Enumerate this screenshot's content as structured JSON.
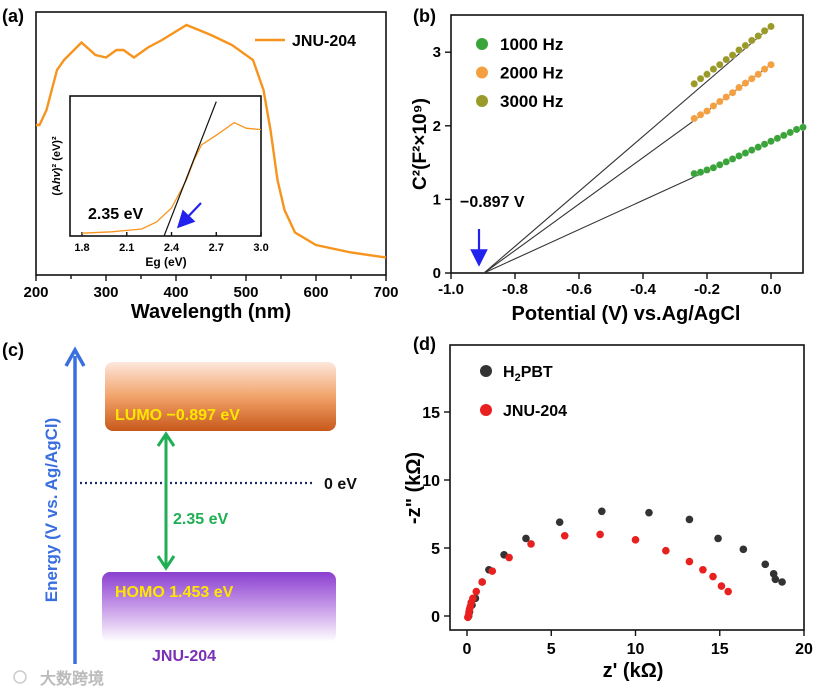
{
  "colors": {
    "uv_curve": "#f7941d",
    "green": "#3aa33a",
    "orange": "#f5a040",
    "olive": "#9a9a2a",
    "black_marker": "#333333",
    "red_marker": "#e8201f",
    "arrow_blue": "#2222ee",
    "energy_axis": "#3a6fe0",
    "gap_arrow": "#1fae54",
    "label_yellow": "#ffe600",
    "jnu_purple": "#7a2fb5"
  },
  "watermark": "大数跨境",
  "chart_data": [
    {
      "panel": "(a)",
      "type": "line",
      "xlabel": "Wavelength (nm)",
      "ylabel": "",
      "xlim": [
        200,
        700
      ],
      "xticks": [
        "200",
        "300",
        "400",
        "500",
        "600",
        "700"
      ],
      "ylim": [
        0,
        1.05
      ],
      "legend": {
        "position": "top-right",
        "entries": [
          "JNU-204"
        ]
      },
      "series": [
        {
          "name": "JNU-204",
          "x": [
            200,
            205,
            215,
            230,
            240,
            265,
            285,
            300,
            315,
            325,
            340,
            360,
            380,
            415,
            450,
            480,
            510,
            525,
            535,
            545,
            555,
            570,
            600,
            650,
            700
          ],
          "y": [
            0.6,
            0.6,
            0.66,
            0.82,
            0.86,
            0.93,
            0.88,
            0.87,
            0.9,
            0.9,
            0.87,
            0.91,
            0.94,
            1.0,
            0.96,
            0.92,
            0.86,
            0.74,
            0.58,
            0.38,
            0.26,
            0.17,
            0.12,
            0.09,
            0.07
          ]
        }
      ],
      "inset": {
        "type": "line",
        "xlabel": "Eg (eV)",
        "ylabel_prefix": "(A",
        "ylabel_italic": "hv",
        "ylabel_suffix": ")² (eV)²",
        "xlim": [
          1.72,
          3.0
        ],
        "xticks": [
          "1.8",
          "2.1",
          "2.4",
          "2.7",
          "3.0"
        ],
        "annotation": "2.35 eV",
        "series": {
          "x": [
            1.8,
            2.0,
            2.2,
            2.3,
            2.4,
            2.5,
            2.55,
            2.6,
            2.7,
            2.82,
            2.9,
            3.0
          ],
          "y": [
            0.02,
            0.03,
            0.05,
            0.1,
            0.2,
            0.4,
            0.54,
            0.65,
            0.72,
            0.81,
            0.77,
            0.76
          ]
        },
        "tangent": {
          "x": [
            2.35,
            2.7
          ],
          "y": [
            0.0,
            0.96
          ]
        }
      }
    },
    {
      "panel": "(b)",
      "type": "scatter",
      "xlabel": "Potential (V) vs.Ag/AgCl",
      "ylabel": "C²(F²×10⁹)",
      "xlim": [
        -1.0,
        0.1
      ],
      "ylim": [
        0,
        3.5
      ],
      "xticks": [
        "-1.0",
        "-0.8",
        "-0.6",
        "-0.4",
        "-0.2",
        "0.0"
      ],
      "yticks": [
        "0",
        "1",
        "2",
        "3"
      ],
      "annotation": "−0.897 V",
      "intercept": -0.897,
      "legend": {
        "position": "top-left"
      },
      "series": [
        {
          "name": "1000 Hz",
          "x": [
            -0.24,
            -0.22,
            -0.2,
            -0.18,
            -0.16,
            -0.14,
            -0.12,
            -0.1,
            -0.08,
            -0.06,
            -0.04,
            -0.02,
            0,
            0.02,
            0.04,
            0.06,
            0.08,
            0.1
          ],
          "y": [
            1.35,
            1.37,
            1.4,
            1.43,
            1.47,
            1.51,
            1.55,
            1.59,
            1.63,
            1.67,
            1.71,
            1.75,
            1.79,
            1.83,
            1.87,
            1.91,
            1.95,
            1.98
          ]
        },
        {
          "name": "2000 Hz",
          "x": [
            -0.24,
            -0.22,
            -0.2,
            -0.18,
            -0.16,
            -0.14,
            -0.12,
            -0.1,
            -0.08,
            -0.06,
            -0.04,
            -0.02,
            0
          ],
          "y": [
            2.1,
            2.15,
            2.2,
            2.27,
            2.33,
            2.39,
            2.45,
            2.52,
            2.58,
            2.64,
            2.7,
            2.77,
            2.83
          ]
        },
        {
          "name": "3000 Hz",
          "x": [
            -0.24,
            -0.22,
            -0.2,
            -0.18,
            -0.16,
            -0.14,
            -0.12,
            -0.1,
            -0.08,
            -0.06,
            -0.04,
            -0.02,
            0
          ],
          "y": [
            2.57,
            2.64,
            2.7,
            2.77,
            2.83,
            2.9,
            2.96,
            3.03,
            3.09,
            3.16,
            3.22,
            3.29,
            3.35
          ]
        }
      ]
    },
    {
      "panel": "(c)",
      "type": "diagram",
      "axis_label": "Energy (V vs. Ag/AgCl)",
      "lumo_label": "LUMO −0.897 eV",
      "homo_label": "HOMO 1.453 eV",
      "zero_label": "0 eV",
      "gap_label": "2.35 eV",
      "material": "JNU-204"
    },
    {
      "panel": "(d)",
      "type": "scatter",
      "xlabel": "z' (kΩ)",
      "ylabel": "-z\" (kΩ)",
      "xlim": [
        -1,
        20
      ],
      "ylim": [
        -1,
        20
      ],
      "xticks": [
        "0",
        "5",
        "10",
        "15",
        "20"
      ],
      "yticks": [
        "0",
        "5",
        "10",
        "15"
      ],
      "legend": {
        "position": "top-left"
      },
      "series": [
        {
          "name": "H2PBT",
          "name_main": "H",
          "name_sub": "2",
          "name_rest": "PBT",
          "x": [
            0.1,
            0.15,
            0.3,
            0.5,
            0.9,
            1.3,
            2.2,
            3.5,
            5.5,
            8.0,
            10.8,
            13.2,
            14.9,
            16.4,
            17.7,
            18.2,
            18.3,
            18.7
          ],
          "y": [
            0,
            0.3,
            0.8,
            1.3,
            2.5,
            3.4,
            4.5,
            5.7,
            6.9,
            7.7,
            7.6,
            7.1,
            5.7,
            4.9,
            3.8,
            3.1,
            2.7,
            2.5
          ]
        },
        {
          "name": "JNU-204",
          "x": [
            0.05,
            0.1,
            0.12,
            0.15,
            0.2,
            0.25,
            0.35,
            0.55,
            0.9,
            1.5,
            2.5,
            3.8,
            5.8,
            7.9,
            10.0,
            11.8,
            13.2,
            14.0,
            14.6,
            15.1,
            15.5
          ],
          "y": [
            -0.1,
            0.1,
            0.3,
            0.5,
            0.7,
            1.0,
            1.3,
            1.8,
            2.5,
            3.3,
            4.3,
            5.3,
            5.9,
            6.0,
            5.6,
            4.8,
            4.0,
            3.4,
            2.9,
            2.2,
            1.8
          ]
        }
      ]
    }
  ]
}
